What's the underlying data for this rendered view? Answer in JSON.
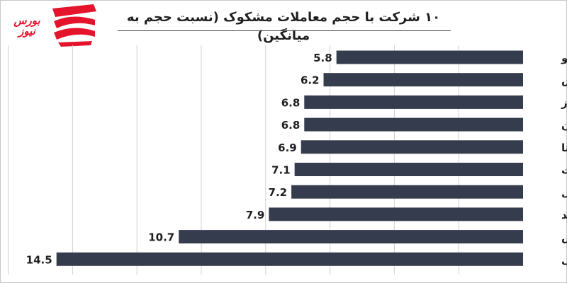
{
  "logo": {
    "text": "بورس نیوز"
  },
  "chart_data": {
    "type": "bar",
    "orientation": "horizontal",
    "title": "۱۰ شرکت با حجم معاملات مشکوک (نسبت حجم به میانگین)",
    "categories": [
      "پاکشو",
      "ثفارس",
      "البرز",
      "مداران",
      "غگستا",
      "ملت",
      "پترول",
      "وسدید",
      "قنقش",
      "دشیمی"
    ],
    "values": [
      5.8,
      6.2,
      6.8,
      6.8,
      6.9,
      7.1,
      7.2,
      7.9,
      10.7,
      14.5
    ],
    "value_labels": [
      "5.8",
      "6.2",
      "6.8",
      "6.8",
      "6.9",
      "7.1",
      "7.2",
      "7.9",
      "10.7",
      "14.5"
    ],
    "xlim": [
      0,
      16
    ],
    "grid": true,
    "bar_direction": "right-to-left",
    "colors": {
      "bar": "#343c4e",
      "grid": "#d0d0d0",
      "text": "#1f1f1f",
      "brand": "#e4142c"
    }
  }
}
